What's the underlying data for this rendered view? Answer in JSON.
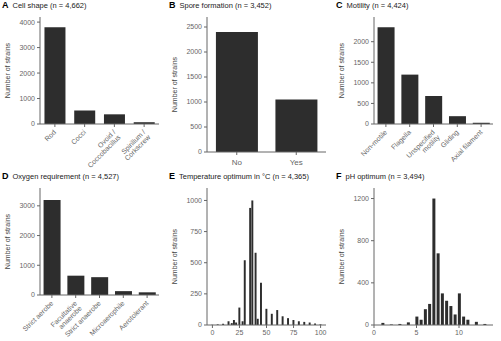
{
  "chart_data": [
    {
      "type": "bar",
      "title": "Cell shape (n = 4,662)",
      "annotations": [
        "A"
      ],
      "categories": [
        "Rod",
        "Cocci",
        "Ovoid /\nCoccobacillus",
        "Spirillum /\nCorkscrew"
      ],
      "values": [
        3800,
        530,
        380,
        70
      ],
      "ylabel": "Number of strains",
      "ylim": [
        0,
        4200
      ],
      "yticks": [
        0,
        1000,
        2000,
        3000,
        4000
      ],
      "color": "#2d2d2d",
      "grid": false
    },
    {
      "type": "bar",
      "title": "Spore formation (n = 3,452)",
      "annotations": [
        "B"
      ],
      "categories": [
        "No",
        "Yes"
      ],
      "values": [
        2400,
        1050
      ],
      "ylabel": "Number of strains",
      "ylim": [
        0,
        2700
      ],
      "yticks": [
        0,
        500,
        1000,
        1500,
        2000,
        2500
      ],
      "color": "#2d2d2d",
      "grid": false
    },
    {
      "type": "bar",
      "title": "Motility (n = 4,424)",
      "annotations": [
        "C"
      ],
      "categories": [
        "Non-motile",
        "Flagella",
        "Unspecified\nmotility",
        "Gliding",
        "Axial filament"
      ],
      "values": [
        2350,
        1200,
        680,
        190,
        30
      ],
      "ylabel": "Number of strains",
      "ylim": [
        0,
        2600
      ],
      "yticks": [
        0,
        500,
        1000,
        1500,
        2000
      ],
      "color": "#2d2d2d",
      "grid": false
    },
    {
      "type": "bar",
      "title": "Oxygen requirement (n = 4,527)",
      "annotations": [
        "D"
      ],
      "categories": [
        "Strict aerobe",
        "Facultative\nanaerobe",
        "Strict anaerobe",
        "Microaerophile",
        "Aerotolerant"
      ],
      "values": [
        3200,
        650,
        600,
        130,
        90
      ],
      "ylabel": "Number of strains",
      "ylim": [
        0,
        3600
      ],
      "yticks": [
        0,
        1000,
        2000,
        3000
      ],
      "color": "#2d2d2d",
      "grid": false
    },
    {
      "type": "bar",
      "title": "Temperature optimum in °C (n = 4,365)",
      "annotations": [
        "E"
      ],
      "x": [
        0,
        5,
        10,
        15,
        18,
        20,
        22,
        25,
        28,
        30,
        35,
        37,
        40,
        42,
        45,
        50,
        55,
        60,
        65,
        70,
        75,
        80,
        85,
        90,
        95,
        100
      ],
      "values": [
        2,
        5,
        10,
        30,
        15,
        40,
        20,
        140,
        30,
        520,
        940,
        1000,
        580,
        50,
        340,
        130,
        90,
        120,
        70,
        55,
        40,
        30,
        25,
        20,
        12,
        5
      ],
      "ylabel": "Number of strains",
      "ylim": [
        0,
        1100
      ],
      "yticks": [
        0,
        250,
        500,
        750,
        1000
      ],
      "xlim": [
        -5,
        105
      ],
      "xticks": [
        0,
        25,
        50,
        75,
        100
      ],
      "color": "#2d2d2d",
      "grid": false
    },
    {
      "type": "bar",
      "title": "pH optimum (n = 3,494)",
      "annotations": [
        "F"
      ],
      "x": [
        1,
        2,
        3,
        4,
        5,
        5.5,
        6,
        6.5,
        7,
        7.5,
        8,
        8.5,
        9,
        9.5,
        10,
        10.5,
        11,
        12,
        13
      ],
      "values": [
        20,
        5,
        10,
        25,
        80,
        50,
        150,
        200,
        1200,
        680,
        300,
        230,
        180,
        100,
        300,
        80,
        50,
        30,
        10
      ],
      "ylabel": "Number of strains",
      "ylim": [
        0,
        1300
      ],
      "yticks": [
        0,
        400,
        800,
        1200
      ],
      "xlim": [
        0,
        14
      ],
      "xticks": [
        0,
        5,
        10
      ],
      "color": "#2d2d2d",
      "grid": false
    }
  ]
}
